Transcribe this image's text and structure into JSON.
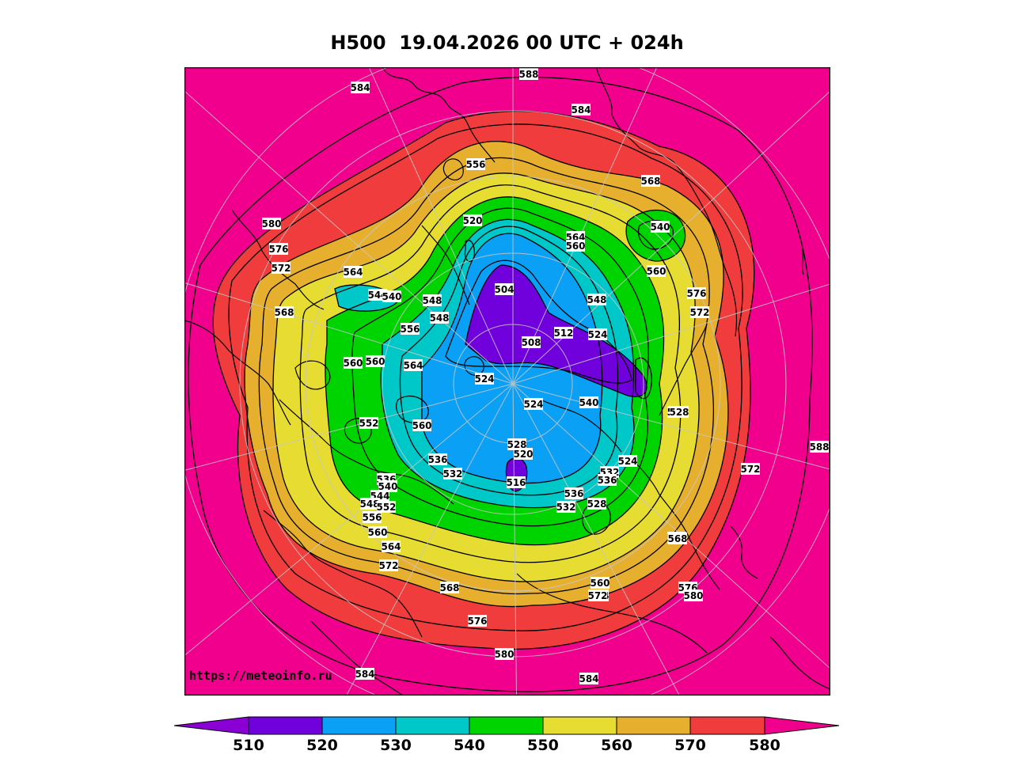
{
  "title": "H500  19.04.2026 00 UTC + 024h",
  "watermark": "https://meteoinfo.ru",
  "colors": {
    "lt510": "#8a00d4",
    "c510": "#7000dc",
    "c520": "#0aa0f5",
    "c530": "#00c8c8",
    "c540": "#00d400",
    "c550": "#e6dc32",
    "c560": "#e6af2d",
    "c570": "#f03c3c",
    "c580": "#f0008c"
  },
  "colorbar": {
    "labels": [
      "510",
      "520",
      "530",
      "540",
      "550",
      "560",
      "570",
      "580"
    ]
  },
  "contour_labels": [
    "588",
    "584",
    "584",
    "580",
    "576",
    "572",
    "568",
    "556",
    "564",
    "560",
    "544",
    "540",
    "548",
    "548",
    "556",
    "560",
    "564",
    "552",
    "560",
    "536",
    "532",
    "536",
    "540",
    "544",
    "548",
    "552",
    "556",
    "560",
    "564",
    "572",
    "568",
    "576",
    "580",
    "584",
    "520",
    "504",
    "512",
    "508",
    "524",
    "524",
    "524",
    "540",
    "528",
    "520",
    "516",
    "536",
    "532",
    "528",
    "524",
    "532",
    "536",
    "528",
    "552",
    "560",
    "564",
    "572",
    "576",
    "580",
    "584",
    "568",
    "540",
    "560",
    "564",
    "560",
    "548",
    "576",
    "572",
    "528",
    "572",
    "588",
    "568"
  ]
}
